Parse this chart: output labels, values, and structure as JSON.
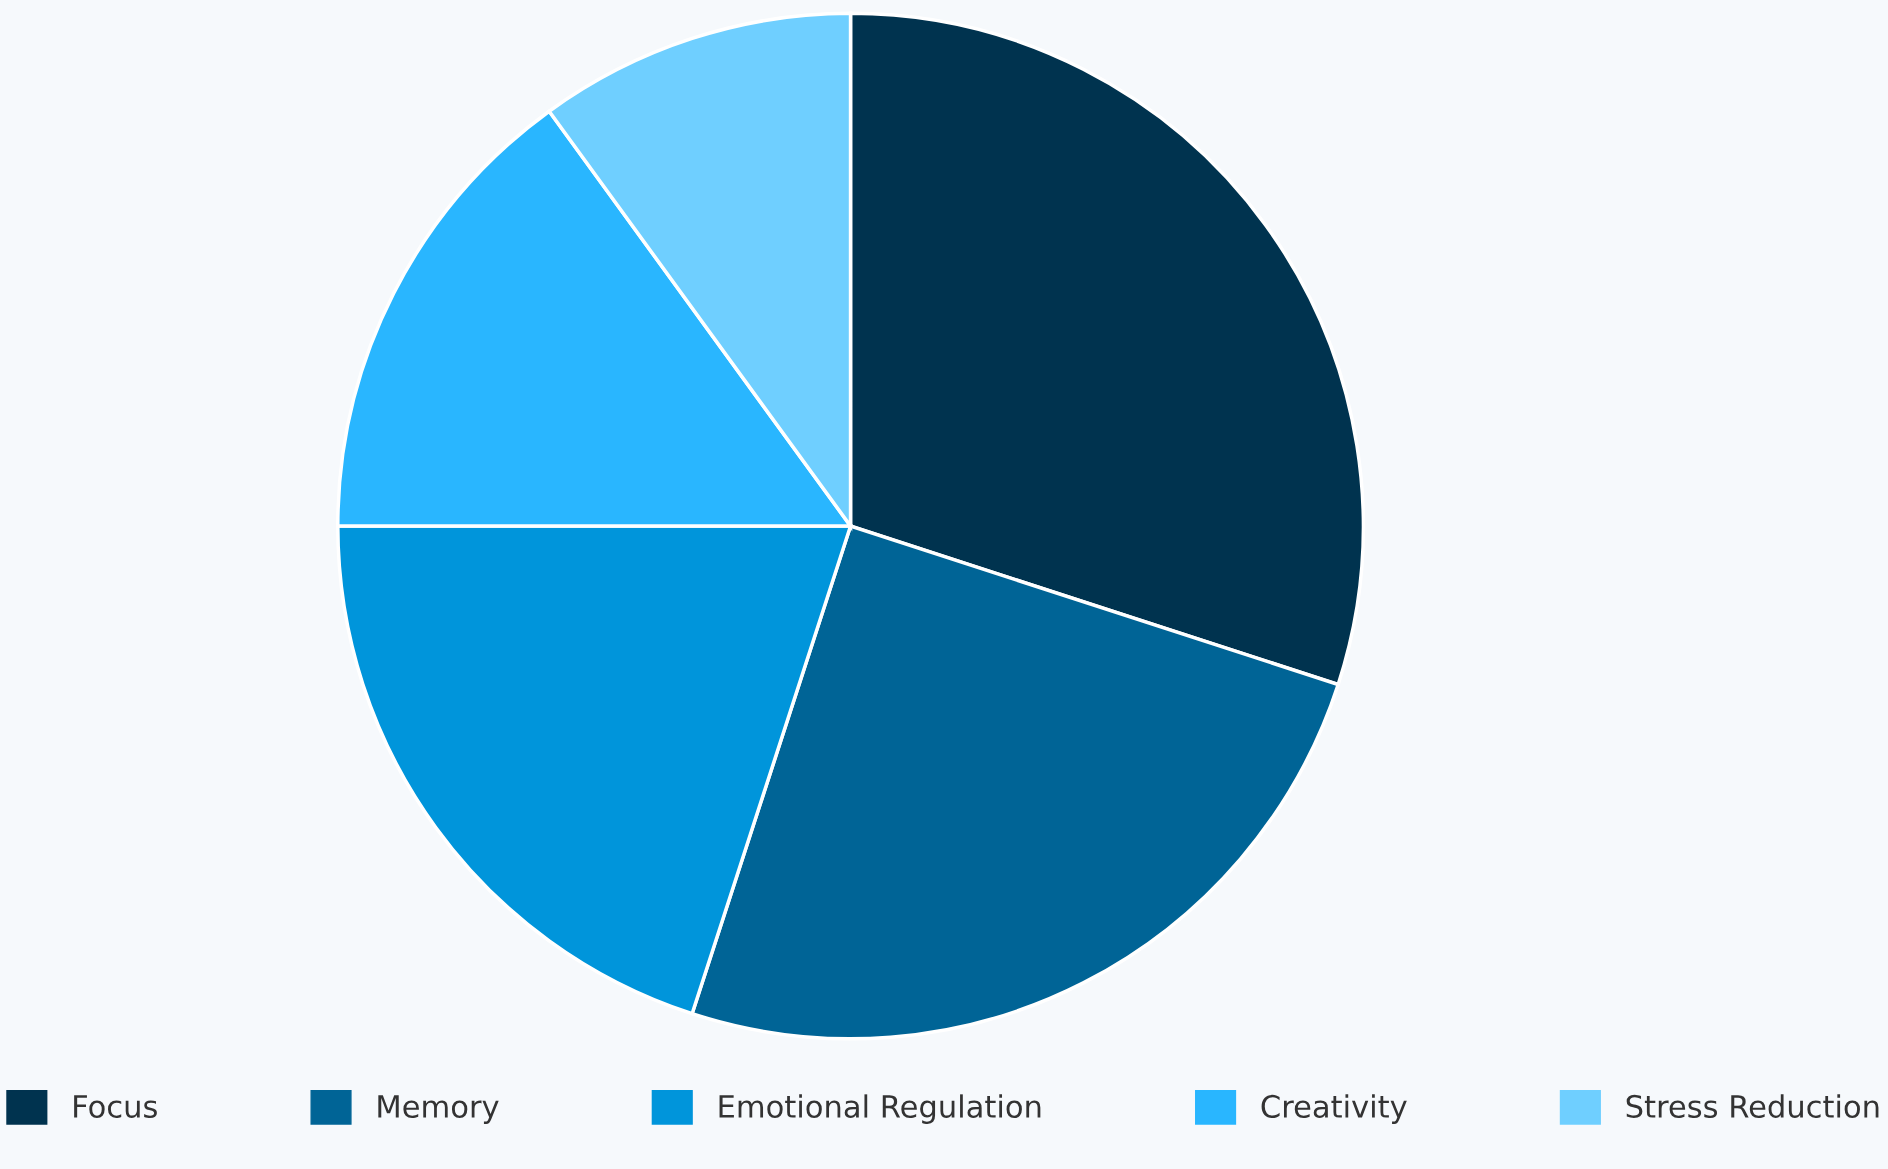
{
  "chart_data": {
    "type": "pie",
    "categories": [
      "Focus",
      "Memory",
      "Emotional Regulation",
      "Creativity",
      "Stress Reduction"
    ],
    "values": [
      30,
      25,
      20,
      15,
      10
    ],
    "colors": [
      "#00334f",
      "#006496",
      "#0095db",
      "#29b6ff",
      "#6fcfff"
    ],
    "legend": "bottom"
  }
}
